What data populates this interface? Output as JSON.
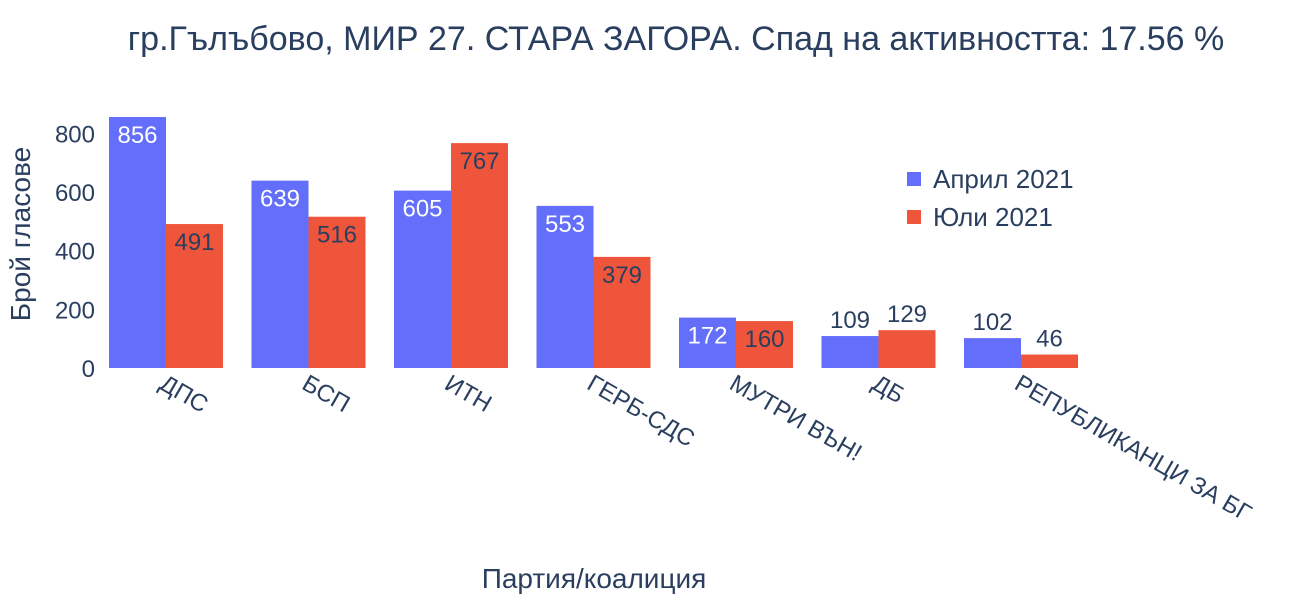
{
  "chart_data": {
    "type": "bar",
    "title": "гр.Гълъбово, МИР 27. СТАРА ЗАГОРА. Спад на активността: 17.56 %",
    "xlabel": "Партия/коалиция",
    "ylabel": "Брой гласове",
    "ylim": [
      0,
      880
    ],
    "yticks": [
      0,
      200,
      400,
      600,
      800
    ],
    "categories": [
      "ДПС",
      "БСП",
      "ИТН",
      "ГЕРБ-СДС",
      "МУТРИ ВЪН!",
      "ДБ",
      "РЕПУБЛИКАНЦИ ЗА БГ"
    ],
    "series": [
      {
        "name": "Април 2021",
        "color": "#636efa",
        "values": [
          856,
          639,
          605,
          553,
          172,
          109,
          102
        ]
      },
      {
        "name": "Юли 2021",
        "color": "#ef553b",
        "values": [
          491,
          516,
          767,
          379,
          160,
          129,
          46
        ]
      }
    ],
    "legend_position": "top-right",
    "grid": false
  }
}
